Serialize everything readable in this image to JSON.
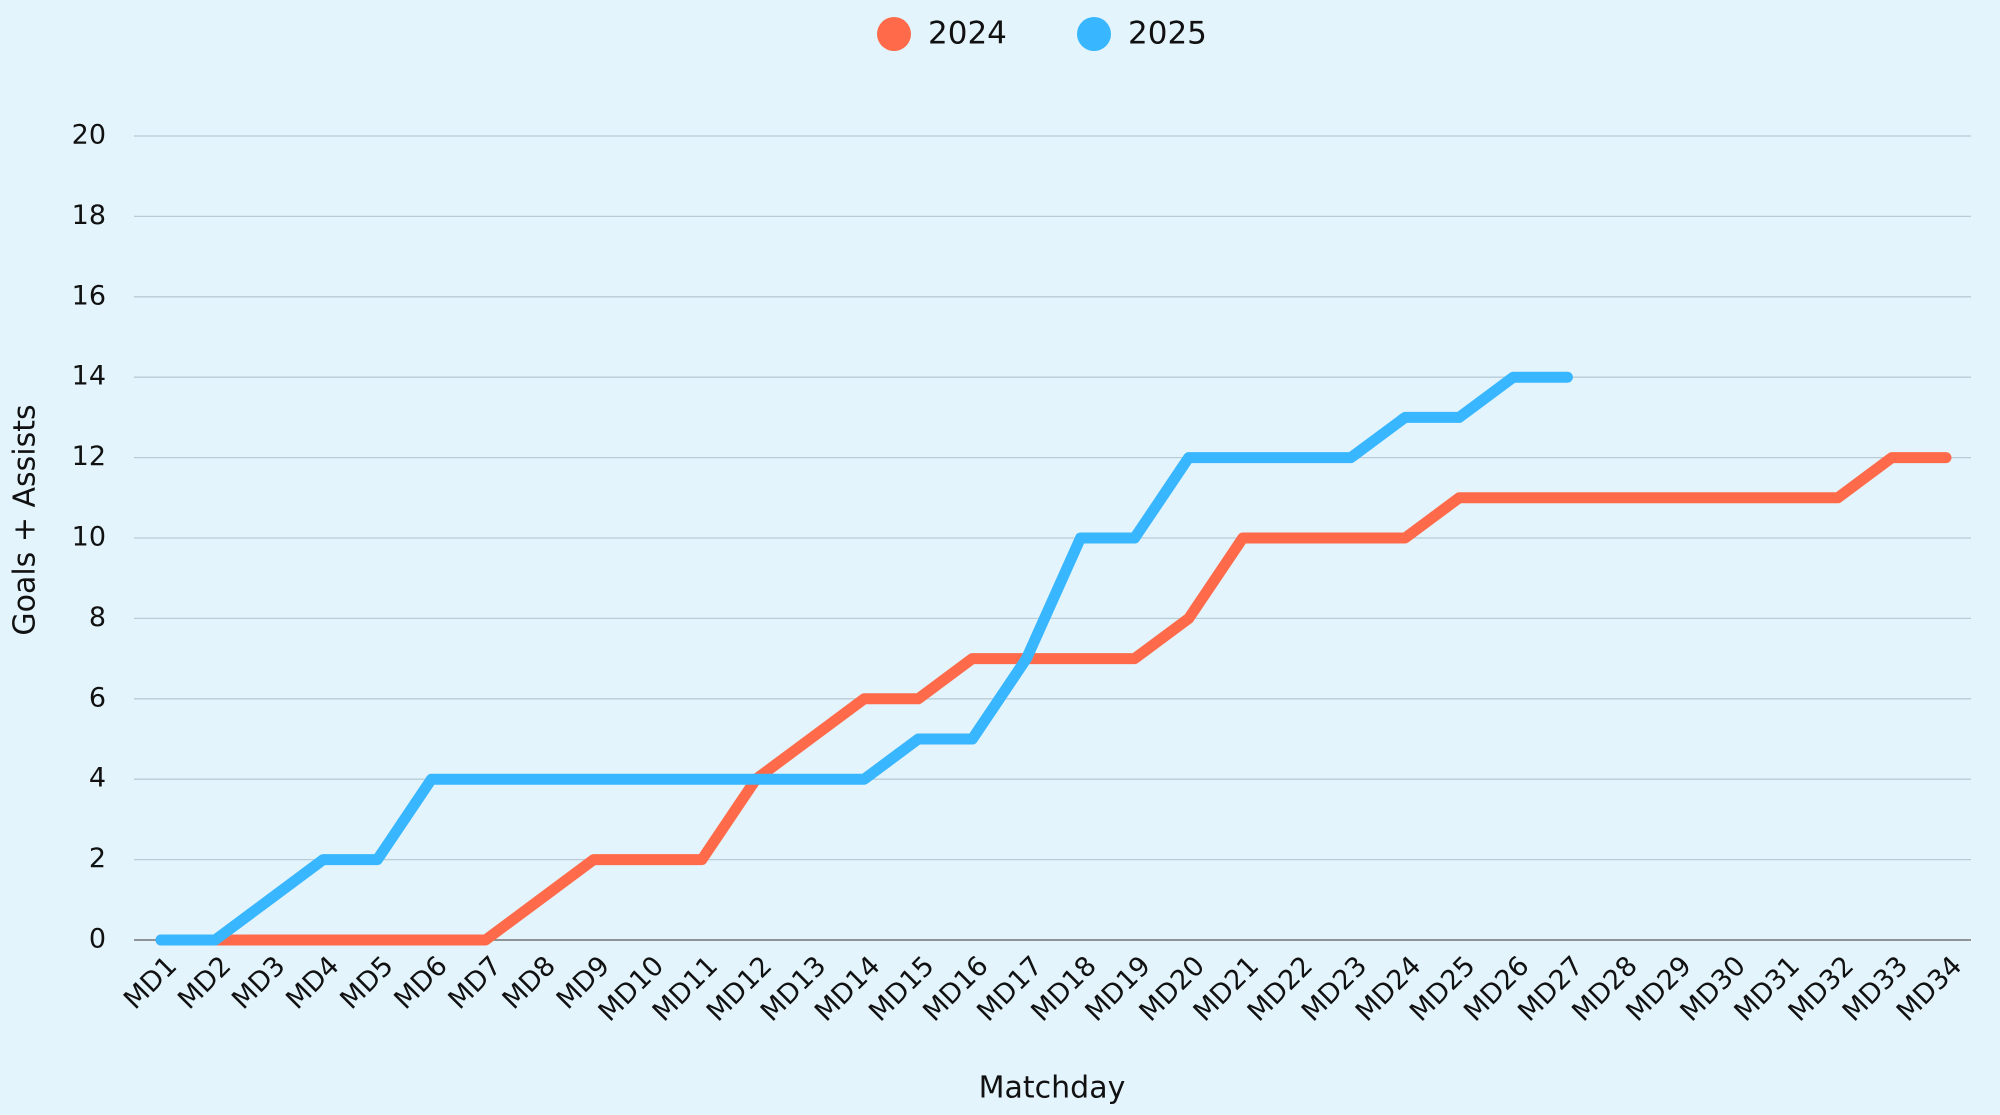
{
  "chart_data": {
    "type": "line",
    "xlabel": "Matchday",
    "ylabel": "Goals + Assists",
    "categories": [
      "MD1",
      "MD2",
      "MD3",
      "MD4",
      "MD5",
      "MD6",
      "MD7",
      "MD8",
      "MD9",
      "MD10",
      "MD11",
      "MD12",
      "MD13",
      "MD14",
      "MD15",
      "MD16",
      "MD17",
      "MD18",
      "MD19",
      "MD20",
      "MD21",
      "MD22",
      "MD23",
      "MD24",
      "MD25",
      "MD26",
      "MD27",
      "MD28",
      "MD29",
      "MD30",
      "MD31",
      "MD32",
      "MD33",
      "MD34"
    ],
    "series": [
      {
        "name": "2024",
        "color": "#ff6b4a",
        "values": [
          0,
          0,
          0,
          0,
          0,
          0,
          0,
          1,
          2,
          2,
          2,
          4,
          5,
          6,
          6,
          7,
          7,
          7,
          7,
          8,
          10,
          10,
          10,
          10,
          11,
          11,
          11,
          11,
          11,
          11,
          11,
          11,
          12,
          12
        ]
      },
      {
        "name": "2025",
        "color": "#38b6ff",
        "values": [
          0,
          0,
          1,
          2,
          2,
          4,
          4,
          4,
          4,
          4,
          4,
          4,
          4,
          4,
          5,
          5,
          7,
          10,
          10,
          12,
          12,
          12,
          12,
          13,
          13,
          14,
          14,
          null,
          null,
          null,
          null,
          null,
          null,
          null
        ]
      }
    ],
    "ylim": [
      0,
      20
    ],
    "yticks": [
      0,
      2,
      4,
      6,
      8,
      10,
      12,
      14,
      16,
      18,
      20
    ],
    "grid": true,
    "legend": "top"
  }
}
